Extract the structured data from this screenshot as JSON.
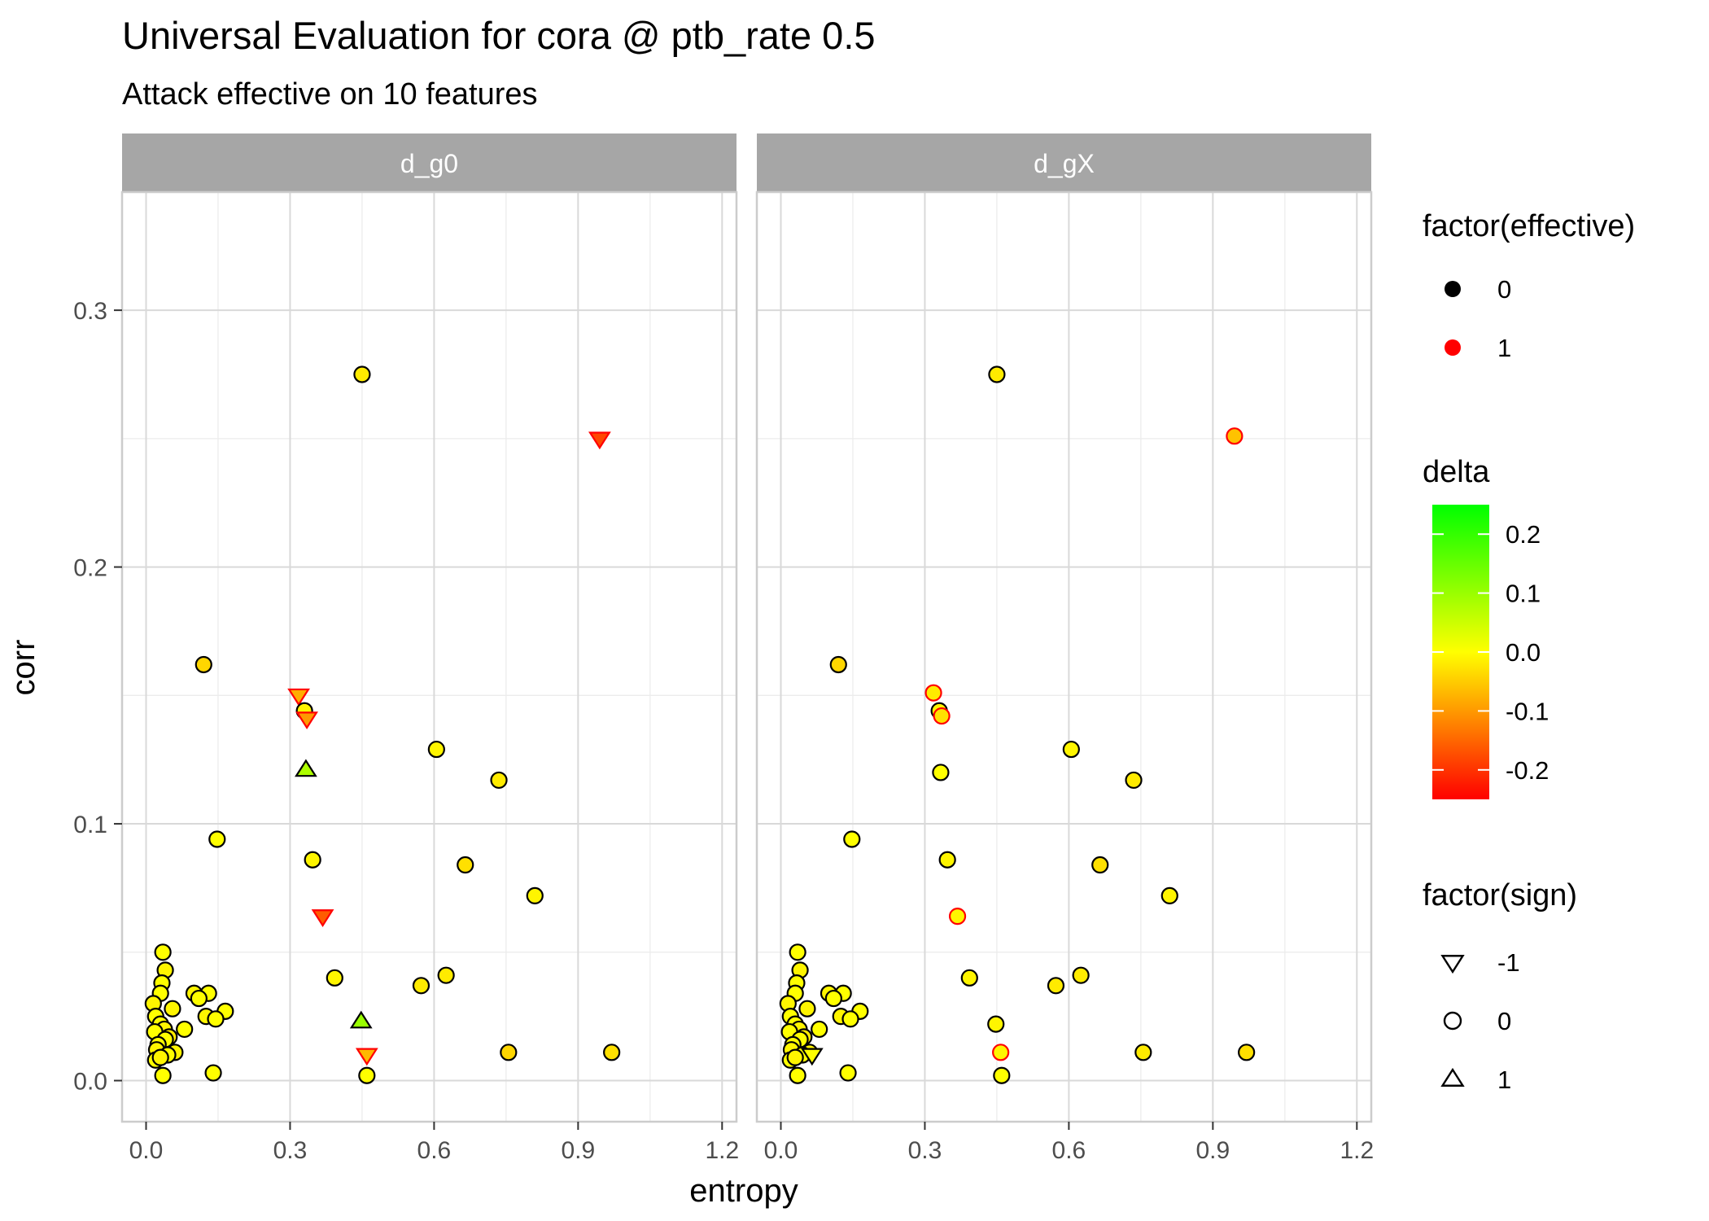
{
  "chart_data": {
    "type": "scatter",
    "title": "Universal Evaluation for cora @ ptb_rate 0.5",
    "subtitle": "Attack effective on 10 features",
    "xlabel": "entropy",
    "ylabel": "corr",
    "xlim": [
      -0.05,
      1.23
    ],
    "ylim": [
      -0.016,
      0.346
    ],
    "x_ticks": [
      0.0,
      0.3,
      0.6,
      0.9,
      1.2
    ],
    "x_tick_labels": [
      "0.0",
      "0.3",
      "0.6",
      "0.9",
      "1.2"
    ],
    "y_ticks": [
      0.0,
      0.1,
      0.2,
      0.3
    ],
    "y_tick_labels": [
      "0.0",
      "0.1",
      "0.2",
      "0.3"
    ],
    "grid": true,
    "legend_position": "right",
    "colors": {
      "panel_background": "#ffffff",
      "grid_major": "#d9d9d9",
      "grid_minor": "#ececec",
      "strip_background": "#a6a6a6",
      "strip_text": "#ffffff",
      "effective_0": "#000000",
      "effective_1": "#ff0000",
      "delta_low": "#ff0000",
      "delta_mid": "#ffff00",
      "delta_high": "#00ff00"
    },
    "legends": {
      "effective": {
        "title": "factor(effective)",
        "entries": [
          {
            "label": "0",
            "color": "#000000"
          },
          {
            "label": "1",
            "color": "#ff0000"
          }
        ]
      },
      "delta": {
        "title": "delta",
        "range": [
          -0.25,
          0.25
        ],
        "ticks": [
          0.2,
          0.1,
          0.0,
          -0.1,
          -0.2
        ],
        "tick_labels": [
          "0.2",
          "0.1",
          "0.0",
          "-0.1",
          "-0.2"
        ]
      },
      "sign": {
        "title": "factor(sign)",
        "entries": [
          {
            "label": "-1",
            "shape": "triangle-down"
          },
          {
            "label": "0",
            "shape": "circle"
          },
          {
            "label": "1",
            "shape": "triangle-up"
          }
        ]
      }
    },
    "panels": [
      {
        "label": "d_g0",
        "points": [
          {
            "x": 0.45,
            "y": 0.275,
            "delta": -0.02,
            "effective": 0,
            "sign": 0
          },
          {
            "x": 0.945,
            "y": 0.25,
            "delta": -0.18,
            "effective": 1,
            "sign": -1
          },
          {
            "x": 0.12,
            "y": 0.162,
            "delta": -0.04,
            "effective": 0,
            "sign": 0
          },
          {
            "x": 0.318,
            "y": 0.15,
            "delta": -0.08,
            "effective": 1,
            "sign": -1
          },
          {
            "x": 0.33,
            "y": 0.144,
            "delta": -0.01,
            "effective": 0,
            "sign": 0
          },
          {
            "x": 0.335,
            "y": 0.141,
            "delta": -0.1,
            "effective": 1,
            "sign": -1
          },
          {
            "x": 0.605,
            "y": 0.129,
            "delta": -0.01,
            "effective": 0,
            "sign": 0
          },
          {
            "x": 0.333,
            "y": 0.121,
            "delta": 0.08,
            "effective": 0,
            "sign": 1
          },
          {
            "x": 0.735,
            "y": 0.117,
            "delta": -0.02,
            "effective": 0,
            "sign": 0
          },
          {
            "x": 0.148,
            "y": 0.094,
            "delta": 0.0,
            "effective": 0,
            "sign": 0
          },
          {
            "x": 0.347,
            "y": 0.086,
            "delta": -0.01,
            "effective": 0,
            "sign": 0
          },
          {
            "x": 0.665,
            "y": 0.084,
            "delta": -0.03,
            "effective": 0,
            "sign": 0
          },
          {
            "x": 0.81,
            "y": 0.072,
            "delta": -0.01,
            "effective": 0,
            "sign": 0
          },
          {
            "x": 0.368,
            "y": 0.064,
            "delta": -0.16,
            "effective": 1,
            "sign": -1
          },
          {
            "x": 0.035,
            "y": 0.05,
            "delta": 0.0,
            "effective": 0,
            "sign": 0
          },
          {
            "x": 0.04,
            "y": 0.043,
            "delta": -0.01,
            "effective": 0,
            "sign": 0
          },
          {
            "x": 0.625,
            "y": 0.041,
            "delta": -0.02,
            "effective": 0,
            "sign": 0
          },
          {
            "x": 0.393,
            "y": 0.04,
            "delta": -0.01,
            "effective": 0,
            "sign": 0
          },
          {
            "x": 0.033,
            "y": 0.038,
            "delta": 0.0,
            "effective": 0,
            "sign": 0
          },
          {
            "x": 0.573,
            "y": 0.037,
            "delta": -0.02,
            "effective": 0,
            "sign": 0
          },
          {
            "x": 0.03,
            "y": 0.034,
            "delta": 0.0,
            "effective": 0,
            "sign": 0
          },
          {
            "x": 0.1,
            "y": 0.034,
            "delta": -0.01,
            "effective": 0,
            "sign": 0
          },
          {
            "x": 0.13,
            "y": 0.034,
            "delta": 0.0,
            "effective": 0,
            "sign": 0
          },
          {
            "x": 0.11,
            "y": 0.032,
            "delta": 0.0,
            "effective": 0,
            "sign": 0
          },
          {
            "x": 0.015,
            "y": 0.03,
            "delta": -0.01,
            "effective": 0,
            "sign": 0
          },
          {
            "x": 0.055,
            "y": 0.028,
            "delta": -0.01,
            "effective": 0,
            "sign": 0
          },
          {
            "x": 0.165,
            "y": 0.027,
            "delta": 0.0,
            "effective": 0,
            "sign": 0
          },
          {
            "x": 0.125,
            "y": 0.025,
            "delta": -0.01,
            "effective": 0,
            "sign": 0
          },
          {
            "x": 0.02,
            "y": 0.025,
            "delta": 0.0,
            "effective": 0,
            "sign": 0
          },
          {
            "x": 0.145,
            "y": 0.024,
            "delta": 0.0,
            "effective": 0,
            "sign": 0
          },
          {
            "x": 0.448,
            "y": 0.023,
            "delta": 0.1,
            "effective": 0,
            "sign": 1
          },
          {
            "x": 0.03,
            "y": 0.022,
            "delta": 0.0,
            "effective": 0,
            "sign": 0
          },
          {
            "x": 0.038,
            "y": 0.02,
            "delta": -0.01,
            "effective": 0,
            "sign": 0
          },
          {
            "x": 0.08,
            "y": 0.02,
            "delta": 0.0,
            "effective": 0,
            "sign": 0
          },
          {
            "x": 0.018,
            "y": 0.019,
            "delta": 0.0,
            "effective": 0,
            "sign": 0
          },
          {
            "x": 0.048,
            "y": 0.017,
            "delta": -0.02,
            "effective": 0,
            "sign": 0
          },
          {
            "x": 0.04,
            "y": 0.016,
            "delta": 0.0,
            "effective": 0,
            "sign": 0
          },
          {
            "x": 0.025,
            "y": 0.014,
            "delta": 0.0,
            "effective": 0,
            "sign": 0
          },
          {
            "x": 0.022,
            "y": 0.012,
            "delta": -0.01,
            "effective": 0,
            "sign": 0
          },
          {
            "x": 0.06,
            "y": 0.011,
            "delta": -0.01,
            "effective": 0,
            "sign": 0
          },
          {
            "x": 0.045,
            "y": 0.01,
            "delta": 0.0,
            "effective": 0,
            "sign": 0
          },
          {
            "x": 0.755,
            "y": 0.011,
            "delta": -0.04,
            "effective": 0,
            "sign": 0
          },
          {
            "x": 0.97,
            "y": 0.011,
            "delta": -0.03,
            "effective": 0,
            "sign": 0
          },
          {
            "x": 0.46,
            "y": 0.01,
            "delta": -0.07,
            "effective": 1,
            "sign": -1
          },
          {
            "x": 0.02,
            "y": 0.008,
            "delta": 0.0,
            "effective": 0,
            "sign": 0
          },
          {
            "x": 0.03,
            "y": 0.009,
            "delta": -0.01,
            "effective": 0,
            "sign": 0
          },
          {
            "x": 0.14,
            "y": 0.003,
            "delta": 0.0,
            "effective": 0,
            "sign": 0
          },
          {
            "x": 0.035,
            "y": 0.002,
            "delta": 0.0,
            "effective": 0,
            "sign": 0
          },
          {
            "x": 0.46,
            "y": 0.002,
            "delta": 0.0,
            "effective": 0,
            "sign": 0
          }
        ]
      },
      {
        "label": "d_gX",
        "points": [
          {
            "x": 0.45,
            "y": 0.275,
            "delta": -0.02,
            "effective": 0,
            "sign": 0
          },
          {
            "x": 0.945,
            "y": 0.251,
            "delta": -0.06,
            "effective": 1,
            "sign": 0
          },
          {
            "x": 0.12,
            "y": 0.162,
            "delta": -0.04,
            "effective": 0,
            "sign": 0
          },
          {
            "x": 0.318,
            "y": 0.151,
            "delta": -0.02,
            "effective": 1,
            "sign": 0
          },
          {
            "x": 0.33,
            "y": 0.144,
            "delta": -0.01,
            "effective": 0,
            "sign": 0
          },
          {
            "x": 0.335,
            "y": 0.142,
            "delta": -0.03,
            "effective": 1,
            "sign": 0
          },
          {
            "x": 0.605,
            "y": 0.129,
            "delta": -0.01,
            "effective": 0,
            "sign": 0
          },
          {
            "x": 0.333,
            "y": 0.12,
            "delta": 0.0,
            "effective": 0,
            "sign": 0
          },
          {
            "x": 0.735,
            "y": 0.117,
            "delta": -0.02,
            "effective": 0,
            "sign": 0
          },
          {
            "x": 0.148,
            "y": 0.094,
            "delta": 0.0,
            "effective": 0,
            "sign": 0
          },
          {
            "x": 0.347,
            "y": 0.086,
            "delta": -0.01,
            "effective": 0,
            "sign": 0
          },
          {
            "x": 0.665,
            "y": 0.084,
            "delta": -0.03,
            "effective": 0,
            "sign": 0
          },
          {
            "x": 0.81,
            "y": 0.072,
            "delta": -0.01,
            "effective": 0,
            "sign": 0
          },
          {
            "x": 0.368,
            "y": 0.064,
            "delta": -0.01,
            "effective": 1,
            "sign": 0
          },
          {
            "x": 0.035,
            "y": 0.05,
            "delta": 0.0,
            "effective": 0,
            "sign": 0
          },
          {
            "x": 0.04,
            "y": 0.043,
            "delta": -0.01,
            "effective": 0,
            "sign": 0
          },
          {
            "x": 0.625,
            "y": 0.041,
            "delta": -0.02,
            "effective": 0,
            "sign": 0
          },
          {
            "x": 0.393,
            "y": 0.04,
            "delta": -0.01,
            "effective": 0,
            "sign": 0
          },
          {
            "x": 0.033,
            "y": 0.038,
            "delta": 0.0,
            "effective": 0,
            "sign": 0
          },
          {
            "x": 0.573,
            "y": 0.037,
            "delta": -0.02,
            "effective": 0,
            "sign": 0
          },
          {
            "x": 0.03,
            "y": 0.034,
            "delta": 0.0,
            "effective": 0,
            "sign": 0
          },
          {
            "x": 0.1,
            "y": 0.034,
            "delta": -0.01,
            "effective": 0,
            "sign": 0
          },
          {
            "x": 0.13,
            "y": 0.034,
            "delta": 0.0,
            "effective": 0,
            "sign": 0
          },
          {
            "x": 0.11,
            "y": 0.032,
            "delta": 0.0,
            "effective": 0,
            "sign": 0
          },
          {
            "x": 0.015,
            "y": 0.03,
            "delta": -0.01,
            "effective": 0,
            "sign": 0
          },
          {
            "x": 0.055,
            "y": 0.028,
            "delta": -0.01,
            "effective": 0,
            "sign": 0
          },
          {
            "x": 0.165,
            "y": 0.027,
            "delta": 0.0,
            "effective": 0,
            "sign": 0
          },
          {
            "x": 0.125,
            "y": 0.025,
            "delta": -0.01,
            "effective": 0,
            "sign": 0
          },
          {
            "x": 0.02,
            "y": 0.025,
            "delta": 0.0,
            "effective": 0,
            "sign": 0
          },
          {
            "x": 0.145,
            "y": 0.024,
            "delta": 0.0,
            "effective": 0,
            "sign": 0
          },
          {
            "x": 0.448,
            "y": 0.022,
            "delta": -0.01,
            "effective": 0,
            "sign": 0
          },
          {
            "x": 0.03,
            "y": 0.022,
            "delta": 0.0,
            "effective": 0,
            "sign": 0
          },
          {
            "x": 0.038,
            "y": 0.02,
            "delta": -0.01,
            "effective": 0,
            "sign": 0
          },
          {
            "x": 0.08,
            "y": 0.02,
            "delta": 0.0,
            "effective": 0,
            "sign": 0
          },
          {
            "x": 0.018,
            "y": 0.019,
            "delta": 0.0,
            "effective": 0,
            "sign": 0
          },
          {
            "x": 0.048,
            "y": 0.017,
            "delta": -0.02,
            "effective": 0,
            "sign": 0
          },
          {
            "x": 0.04,
            "y": 0.016,
            "delta": 0.0,
            "effective": 0,
            "sign": 0
          },
          {
            "x": 0.025,
            "y": 0.014,
            "delta": 0.0,
            "effective": 0,
            "sign": 0
          },
          {
            "x": 0.022,
            "y": 0.012,
            "delta": -0.01,
            "effective": 0,
            "sign": 0
          },
          {
            "x": 0.06,
            "y": 0.011,
            "delta": -0.01,
            "effective": 0,
            "sign": 0
          },
          {
            "x": 0.045,
            "y": 0.01,
            "delta": 0.0,
            "effective": 0,
            "sign": 0
          },
          {
            "x": 0.755,
            "y": 0.011,
            "delta": -0.02,
            "effective": 0,
            "sign": 0
          },
          {
            "x": 0.97,
            "y": 0.011,
            "delta": -0.03,
            "effective": 0,
            "sign": 0
          },
          {
            "x": 0.458,
            "y": 0.011,
            "delta": -0.01,
            "effective": 1,
            "sign": 0
          },
          {
            "x": 0.065,
            "y": 0.01,
            "delta": 0.0,
            "effective": 0,
            "sign": -1
          },
          {
            "x": 0.02,
            "y": 0.008,
            "delta": 0.0,
            "effective": 0,
            "sign": 0
          },
          {
            "x": 0.03,
            "y": 0.009,
            "delta": -0.01,
            "effective": 0,
            "sign": 0
          },
          {
            "x": 0.14,
            "y": 0.003,
            "delta": 0.0,
            "effective": 0,
            "sign": 0
          },
          {
            "x": 0.035,
            "y": 0.002,
            "delta": 0.0,
            "effective": 0,
            "sign": 0
          },
          {
            "x": 0.46,
            "y": 0.002,
            "delta": 0.0,
            "effective": 0,
            "sign": 0
          }
        ]
      }
    ]
  }
}
